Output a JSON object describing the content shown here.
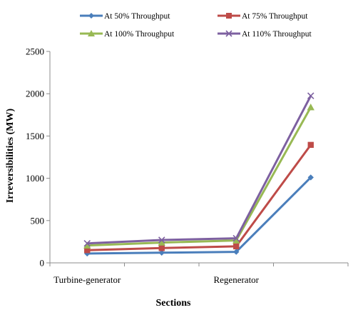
{
  "chart_data": {
    "type": "line",
    "categories": [
      "Turbine-generator",
      "",
      "Regenerator",
      ""
    ],
    "category_labels_shown": [
      "Turbine-generator",
      "Regenerator"
    ],
    "series": [
      {
        "name": "At 50% Throughput",
        "values": [
          110,
          120,
          130,
          1010
        ],
        "color": "#4a7ebb",
        "marker": "diamond"
      },
      {
        "name": "At 75% Throughput",
        "values": [
          150,
          175,
          195,
          1395
        ],
        "color": "#be4b48",
        "marker": "square"
      },
      {
        "name": "At 100% Throughput",
        "values": [
          205,
          240,
          265,
          1840
        ],
        "color": "#98b954",
        "marker": "triangle"
      },
      {
        "name": "At 110% Throughput",
        "values": [
          230,
          270,
          290,
          1975
        ],
        "color": "#7d60a0",
        "marker": "x"
      }
    ],
    "xlabel": "Sections",
    "ylabel": "Irreversibilities (MW)",
    "ylim": [
      0,
      2500
    ],
    "yticks": [
      0,
      500,
      1000,
      1500,
      2000,
      2500
    ],
    "ytick_labels": [
      "0",
      "500",
      "1000",
      "1500",
      "2000",
      "2500"
    ],
    "grid": false,
    "legend_position": "top"
  }
}
